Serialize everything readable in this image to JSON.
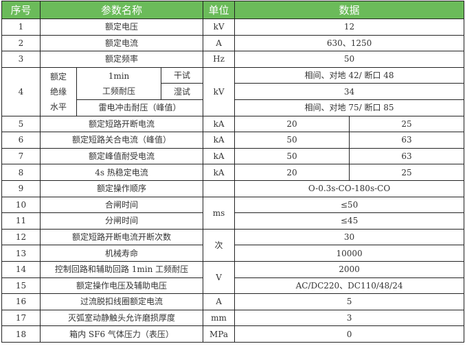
{
  "header": {
    "no": "序号",
    "name": "参数名称",
    "unit": "单位",
    "data": "数据"
  },
  "colors": {
    "header_bg": "#6bbb5a",
    "header_text": "#ffffff"
  },
  "rows": [
    {
      "no": "1",
      "name": "额定电压",
      "unit": "kV",
      "value": "12"
    },
    {
      "no": "2",
      "name": "额定电流",
      "unit": "A",
      "value": "630、1250"
    },
    {
      "no": "3",
      "name": "额定频率",
      "unit": "Hz",
      "value": "50"
    },
    {
      "no": "4",
      "group": "额定绝缘水平",
      "group_lines": [
        "额定",
        "绝缘",
        "水平"
      ],
      "sub1_line1": "1min",
      "sub1_line2": "工频耐压",
      "dry": "干试",
      "wet": "湿试",
      "impulse": "雷电冲击耐压（峰值）",
      "unit": "kV",
      "dry_value": "相间、对地 42/ 断口 48",
      "wet_value": "34",
      "impulse_value": "相间、对地 75/ 断口 85"
    },
    {
      "no": "5",
      "name": "额定短路开断电流",
      "unit": "kA",
      "v1": "20",
      "v2": "25"
    },
    {
      "no": "6",
      "name": "额定短路关合电流（峰值）",
      "unit": "kA",
      "v1": "50",
      "v2": "63"
    },
    {
      "no": "7",
      "name": "额定峰值耐受电流",
      "unit": "kA",
      "v1": "50",
      "v2": "63"
    },
    {
      "no": "8",
      "name": "4s 热稳定电流",
      "unit": "kA",
      "v1": "20",
      "v2": "25"
    },
    {
      "no": "9",
      "name": "额定操作顺序",
      "unit": "",
      "value": "O-0.3s-CO-180s-CO"
    },
    {
      "no": "10",
      "name": "合闸时间",
      "unit": "ms",
      "value": "≤50"
    },
    {
      "no": "11",
      "name": "分闸时间",
      "value": "≤45"
    },
    {
      "no": "12",
      "name": "额定短路开断电流开断次数",
      "unit": "次",
      "value": "30"
    },
    {
      "no": "13",
      "name": "机械寿命",
      "value": "10000"
    },
    {
      "no": "14",
      "name": "控制回路和辅助回路 1min 工频耐压",
      "unit": "V",
      "value": "2000"
    },
    {
      "no": "15",
      "name": "额定操作电压及辅助电压",
      "value": "AC/DC220、DC110/48/24"
    },
    {
      "no": "16",
      "name": "过流脱扣线圈额定电流",
      "unit": "A",
      "value": "5"
    },
    {
      "no": "17",
      "name": "灭弧室动静触头允许磨损厚度",
      "unit": "mm",
      "value": "3"
    },
    {
      "no": "18",
      "name": "箱内 SF6 气体压力（表压）",
      "unit": "MPa",
      "value": "0"
    }
  ]
}
